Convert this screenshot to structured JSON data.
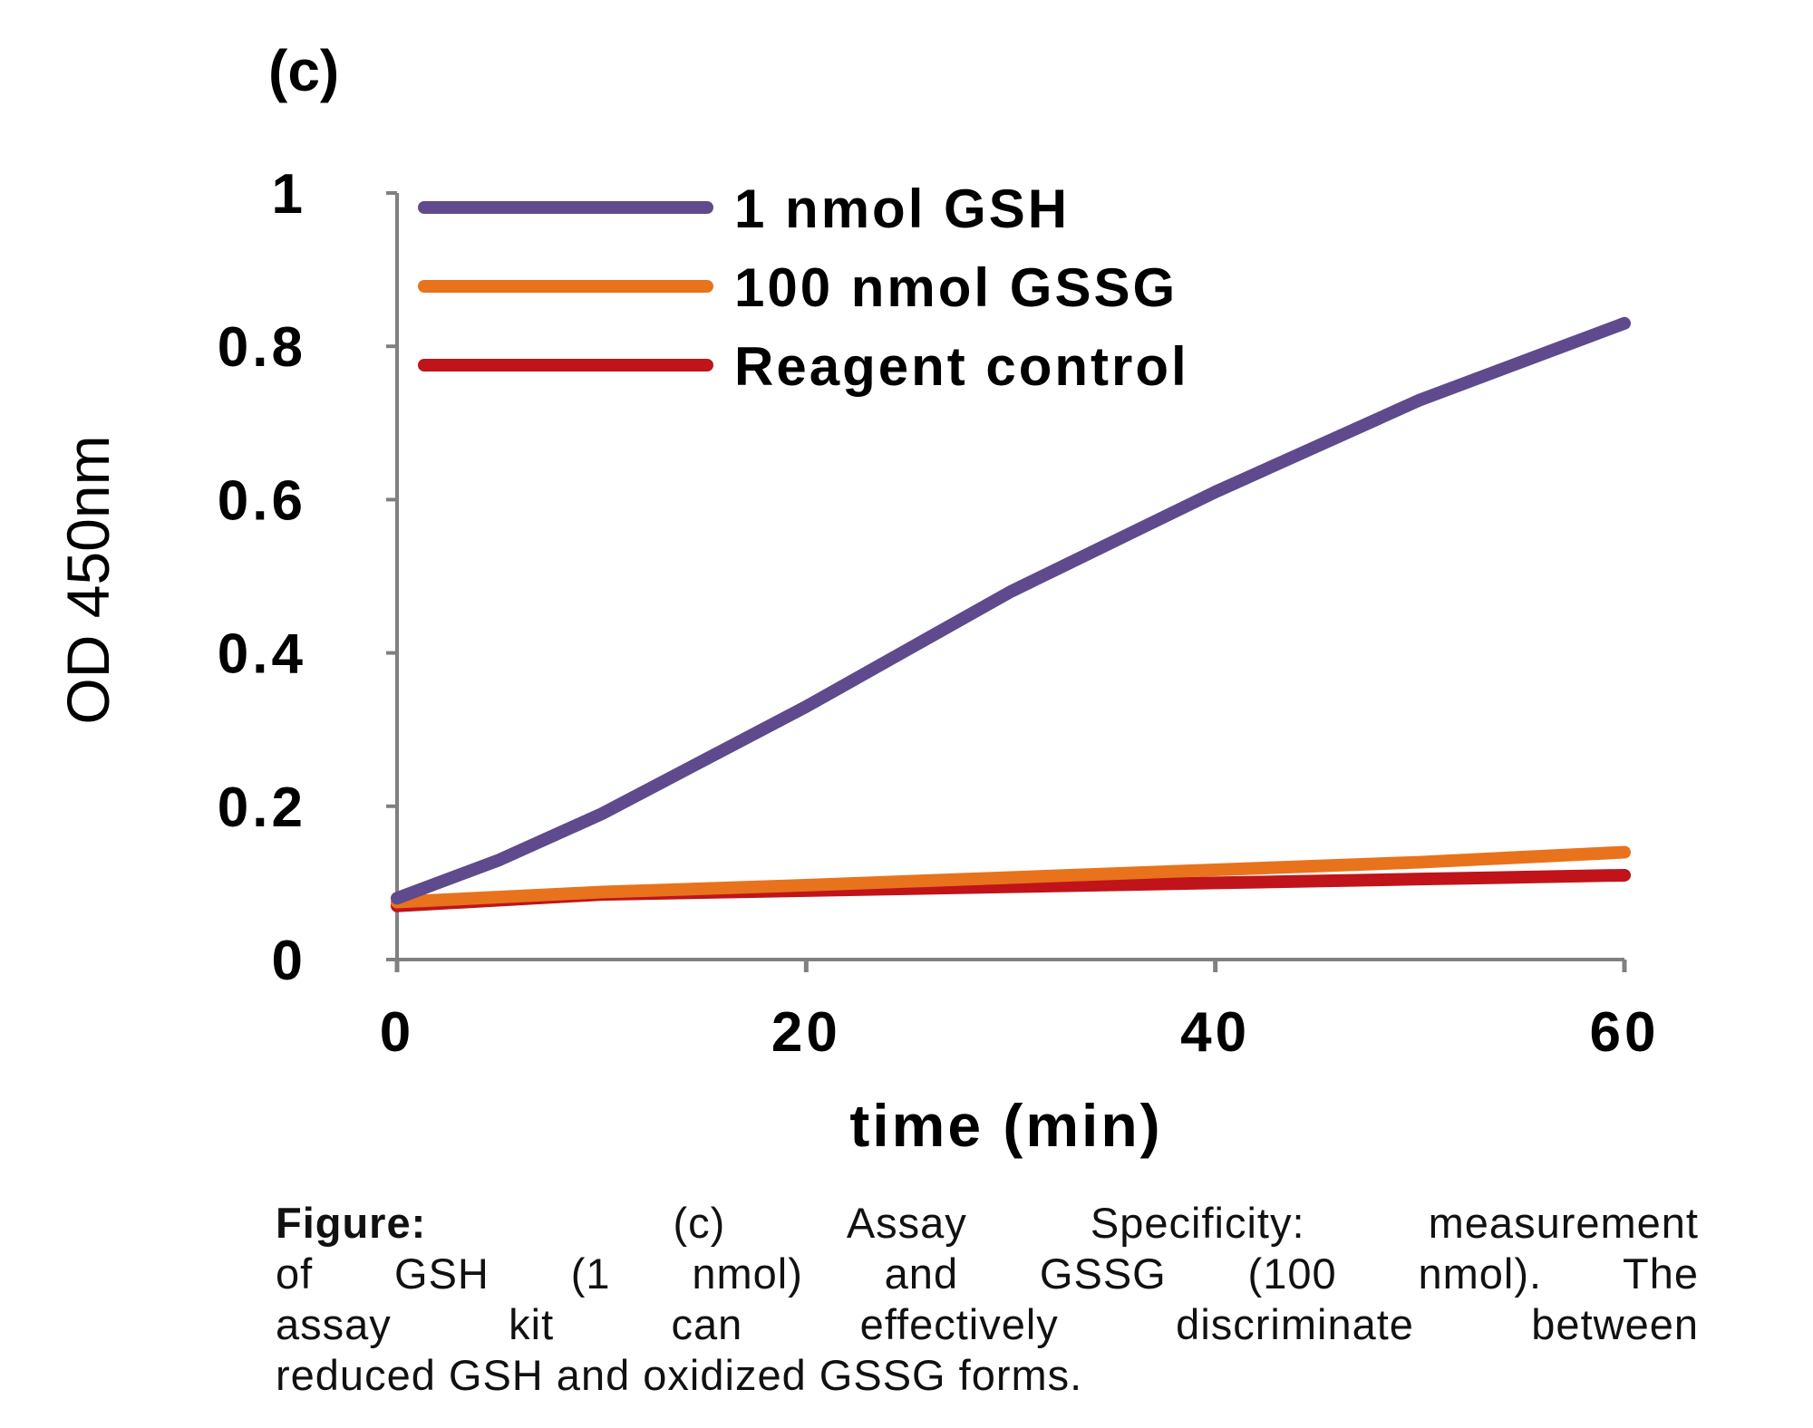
{
  "panel_label": "(c)",
  "chart_data": {
    "type": "line",
    "title": "",
    "xlabel": "time (min)",
    "ylabel": "OD 450nm",
    "xlim": [
      0,
      60
    ],
    "ylim": [
      0,
      1
    ],
    "xticks": [
      "0",
      "20",
      "40",
      "60"
    ],
    "yticks": [
      "0",
      "0.2",
      "0.4",
      "0.6",
      "0.8",
      "1"
    ],
    "grid": false,
    "legend_position": "top-left",
    "series": [
      {
        "name": "1 nmol GSH",
        "color": "#5e4a8c",
        "x": [
          0,
          5,
          10,
          20,
          30,
          40,
          50,
          60
        ],
        "y": [
          0.08,
          0.13,
          0.19,
          0.33,
          0.48,
          0.61,
          0.73,
          0.83
        ]
      },
      {
        "name": "100 nmol GSSG",
        "color": "#e8731c",
        "x": [
          0,
          10,
          20,
          30,
          40,
          50,
          60
        ],
        "y": [
          0.075,
          0.088,
          0.097,
          0.107,
          0.117,
          0.127,
          0.14
        ]
      },
      {
        "name": "Reagent control",
        "color": "#c0141a",
        "x": [
          0,
          10,
          20,
          30,
          40,
          50,
          60
        ],
        "y": [
          0.07,
          0.085,
          0.09,
          0.095,
          0.1,
          0.105,
          0.11
        ]
      }
    ]
  },
  "caption": {
    "lead": "Figure:",
    "lines": [
      "(c) Assay Specificity: measurement",
      "of GSH (1 nmol) and GSSG (100 nmol). The",
      "assay kit can effectively discriminate between",
      "reduced GSH and oxidized GSSG forms."
    ]
  }
}
